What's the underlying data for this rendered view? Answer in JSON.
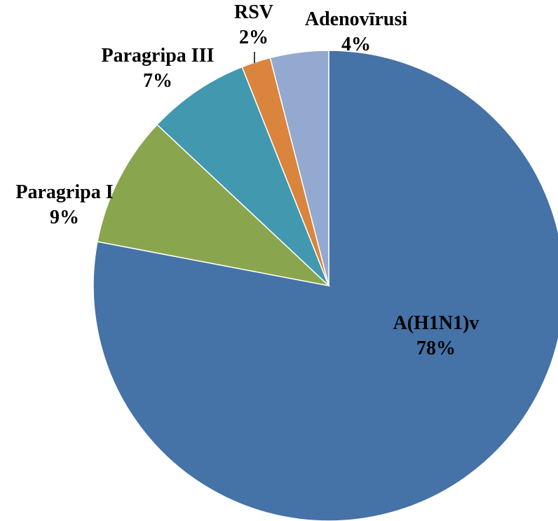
{
  "chart_data": {
    "type": "pie",
    "categories": [
      "A(H1N1)v",
      "Paragripa I",
      "Paragripa III",
      "RSV",
      "Adenovīrusi"
    ],
    "values": [
      78,
      9,
      7,
      2,
      4
    ],
    "value_labels": [
      "78%",
      "9%",
      "7%",
      "2%",
      "4%"
    ],
    "colors": [
      "#4572a7",
      "#89a54e",
      "#4198af",
      "#db843d",
      "#93a9cf"
    ]
  }
}
